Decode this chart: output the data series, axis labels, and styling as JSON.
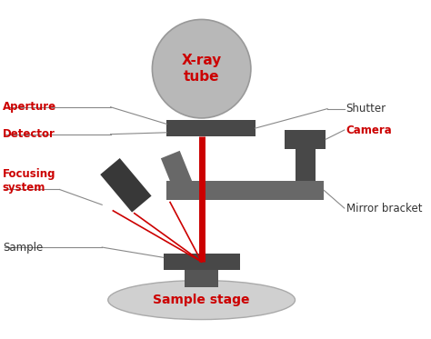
{
  "dark_gray": "#484848",
  "mid_gray": "#686868",
  "light_gray": "#b8b8b8",
  "stage_gray": "#d0d0d0",
  "red": "#cc0000",
  "black": "#333333",
  "white": "#ffffff",
  "ann_line_color": "#888888",
  "labels": {
    "xray_tube": "X-ray\ntube",
    "aperture": "Aperture",
    "detector": "Detector",
    "focusing_system": "Focusing\nsystem",
    "sample": "Sample",
    "sample_stage": "Sample stage",
    "shutter": "Shutter",
    "camera": "Camera",
    "mirror_bracket": "Mirror bracket"
  }
}
